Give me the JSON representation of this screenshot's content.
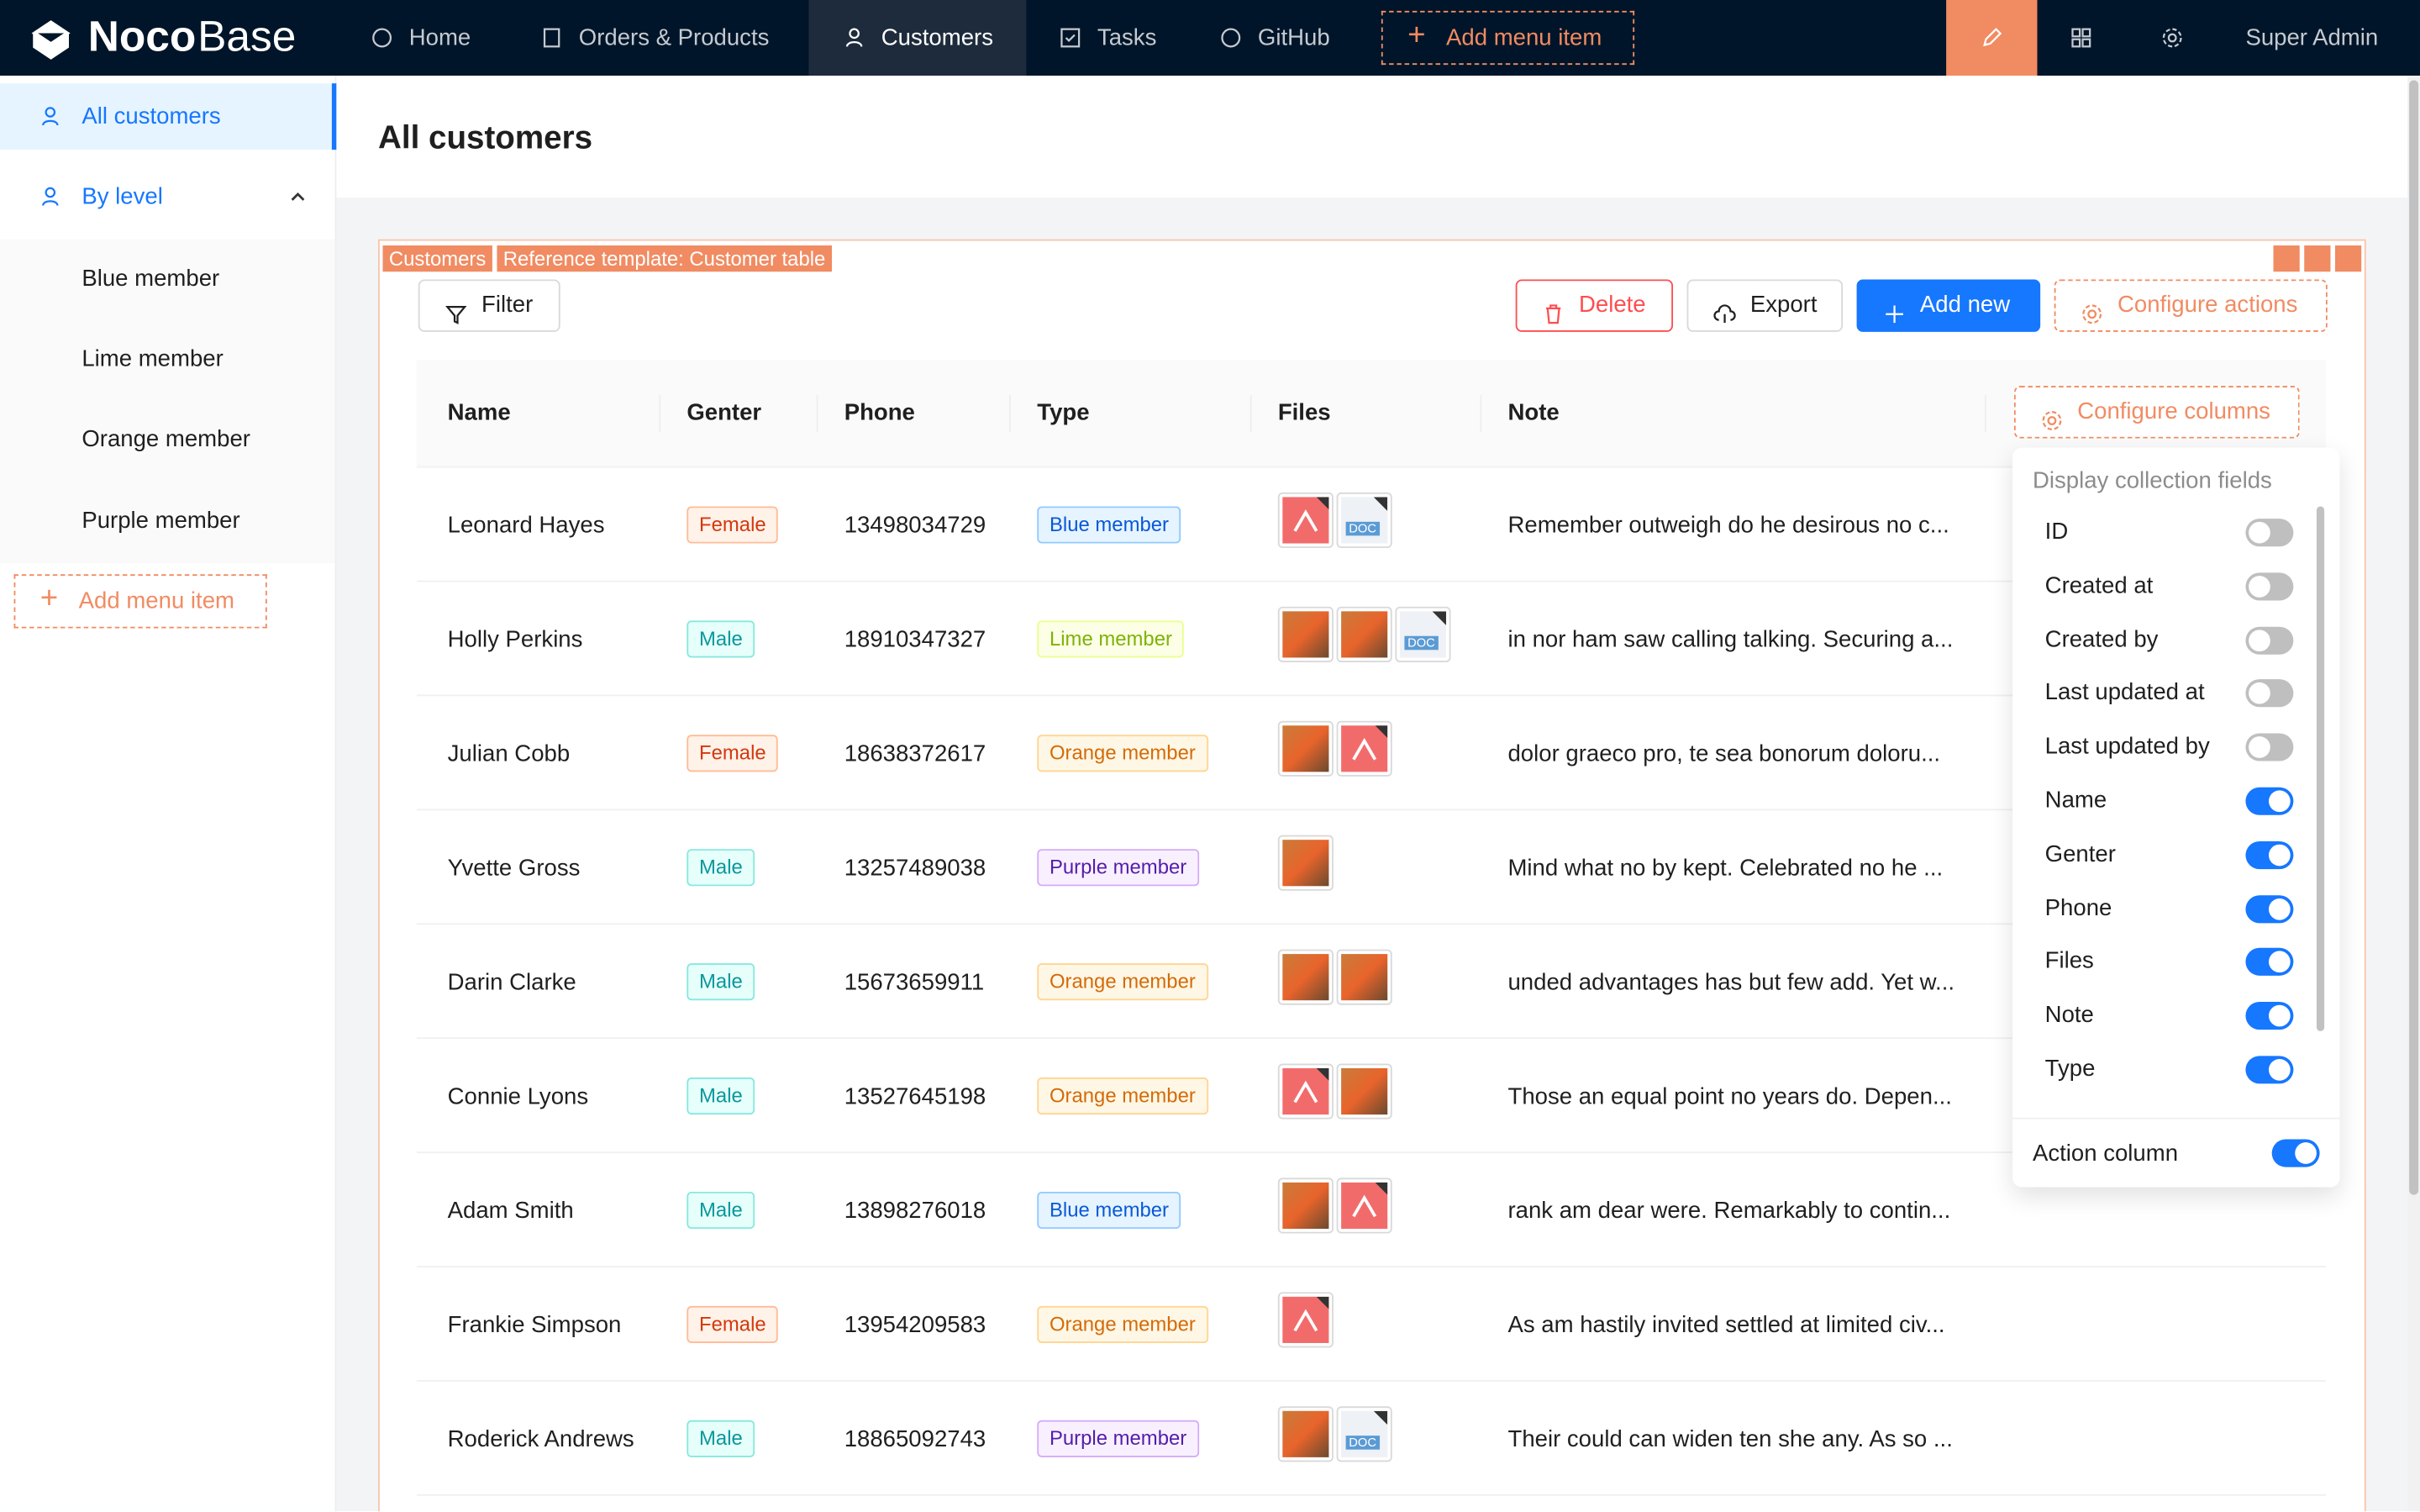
{
  "nav": {
    "logo_bold": "Noco",
    "logo_light": "Base",
    "items": [
      "Home",
      "Orders & Products",
      "Customers",
      "Tasks",
      "GitHub"
    ],
    "active": 2,
    "add_item": "Add menu item",
    "user": "Super Admin"
  },
  "sidebar": {
    "items": [
      {
        "label": "All customers",
        "selected": true,
        "sub": false
      },
      {
        "label": "By level",
        "selected": false,
        "sub": false,
        "expanded": true
      },
      {
        "label": "Blue member",
        "selected": false,
        "sub": true
      },
      {
        "label": "Lime member",
        "selected": false,
        "sub": true
      },
      {
        "label": "Orange member",
        "selected": false,
        "sub": true
      },
      {
        "label": "Purple member",
        "selected": false,
        "sub": true
      }
    ],
    "add_item": "Add menu item"
  },
  "page": {
    "title": "All customers"
  },
  "block": {
    "tags": [
      "Customers",
      "Reference template: Customer table"
    ],
    "filter": "Filter",
    "delete": "Delete",
    "export": "Export",
    "add": "Add new",
    "configure": "Configure actions"
  },
  "table": {
    "columns": [
      "Name",
      "Genter",
      "Phone",
      "Type",
      "Files",
      "Note"
    ],
    "configure_columns": "Configure columns",
    "rows": [
      {
        "name": "Leonard Hayes",
        "gender": "Female",
        "gender_color": "volcano",
        "phone": "13498034729",
        "type": "Blue member",
        "type_color": "blue",
        "files": [
          "pdf",
          "DOC"
        ],
        "note": "Remember outweigh do he desirous no c..."
      },
      {
        "name": "Holly Perkins",
        "gender": "Male",
        "gender_color": "cyan",
        "phone": "18910347327",
        "type": "Lime member",
        "type_color": "lime",
        "files": [
          "img",
          "img",
          "DOC"
        ],
        "note": "in nor ham saw calling talking. Securing a..."
      },
      {
        "name": "Julian Cobb",
        "gender": "Female",
        "gender_color": "volcano",
        "phone": "18638372617",
        "type": "Orange member",
        "type_color": "orange",
        "files": [
          "img",
          "pdf"
        ],
        "note": "dolor graeco pro, te sea bonorum doloru..."
      },
      {
        "name": "Yvette Gross",
        "gender": "Male",
        "gender_color": "cyan",
        "phone": "13257489038",
        "type": "Purple member",
        "type_color": "purple",
        "files": [
          "img"
        ],
        "note": "Mind what no by kept. Celebrated no he ..."
      },
      {
        "name": "Darin Clarke",
        "gender": "Male",
        "gender_color": "cyan",
        "phone": "15673659911",
        "type": "Orange member",
        "type_color": "orange",
        "files": [
          "img",
          "img"
        ],
        "note": "unded advantages has but few add. Yet w..."
      },
      {
        "name": "Connie Lyons",
        "gender": "Male",
        "gender_color": "cyan",
        "phone": "13527645198",
        "type": "Orange member",
        "type_color": "orange",
        "files": [
          "pdf",
          "img"
        ],
        "note": "Those an equal point no years do. Depen..."
      },
      {
        "name": "Adam Smith",
        "gender": "Male",
        "gender_color": "cyan",
        "phone": "13898276018",
        "type": "Blue member",
        "type_color": "blue",
        "files": [
          "img",
          "pdf"
        ],
        "note": "rank am dear were. Remarkably to contin..."
      },
      {
        "name": "Frankie Simpson",
        "gender": "Female",
        "gender_color": "volcano",
        "phone": "13954209583",
        "type": "Orange member",
        "type_color": "orange",
        "files": [
          "pdf"
        ],
        "note": "As am hastily invited settled at limited civ..."
      },
      {
        "name": "Roderick Andrews",
        "gender": "Male",
        "gender_color": "cyan",
        "phone": "18865092743",
        "type": "Purple member",
        "type_color": "purple",
        "files": [
          "img",
          "DOC"
        ],
        "note": "Their could can widen ten she any. As so ..."
      }
    ]
  },
  "column_panel": {
    "heading": "Display collection fields",
    "fields": [
      {
        "label": "ID",
        "on": false
      },
      {
        "label": "Created at",
        "on": false
      },
      {
        "label": "Created by",
        "on": false
      },
      {
        "label": "Last updated at",
        "on": false
      },
      {
        "label": "Last updated by",
        "on": false
      },
      {
        "label": "Name",
        "on": true
      },
      {
        "label": "Genter",
        "on": true
      },
      {
        "label": "Phone",
        "on": true
      },
      {
        "label": "Files",
        "on": true
      },
      {
        "label": "Note",
        "on": true
      },
      {
        "label": "Type",
        "on": true
      }
    ],
    "action_column": {
      "label": "Action column",
      "on": true
    }
  }
}
